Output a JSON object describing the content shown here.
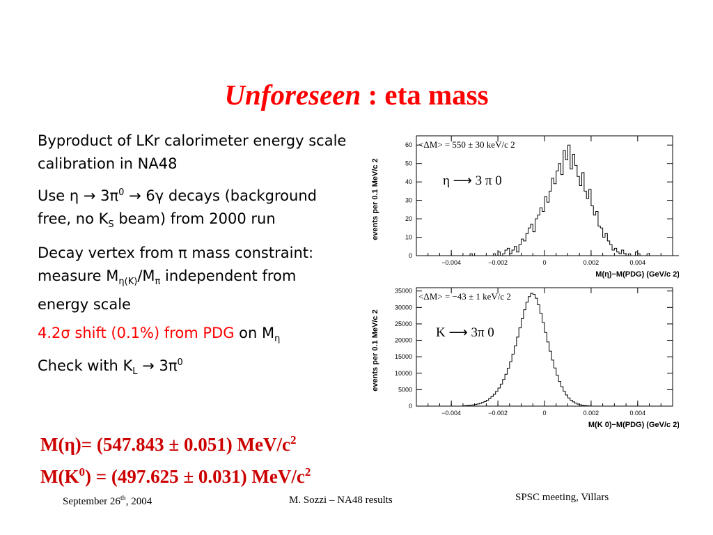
{
  "slide": {
    "title_italic": "Unforeseen",
    "title_rest": " : eta mass"
  },
  "bullets": {
    "b1": "Byproduct of LKr calorimeter energy scale calibration in NA48",
    "b2_pre": "Use η → 3π",
    "b2_sup": "0",
    "b2_mid": " → 6γ decays (background free, no K",
    "b2_sub": "S",
    "b2_post": " beam) from 2000 run",
    "b3_pre": "Decay vertex from π mass constraint: measure M",
    "b3_sub1": "η(K)",
    "b3_mid": "/M",
    "b3_sub2": "π",
    "b3_post": " independent from energy scale",
    "b4_red": "4.2σ shift (0.1%) from PDG",
    "b4_black": " on M",
    "b4_sub": "η",
    "b5_pre": "Check with K",
    "b5_sub": "L",
    "b5_mid": " → 3π",
    "b5_sup": "0"
  },
  "results": {
    "eta_pre": "M(η)= (547.843 ± 0.051) MeV/c",
    "eta_sup": "2",
    "k_pre": "M(K",
    "k_sup": "0",
    "k_mid": ") = (497.625 ± 0.031) MeV/c",
    "k_sup2": "2"
  },
  "footer": {
    "date_pre": "September 26",
    "date_sup": "th",
    "date_post": ", 2004",
    "center": "M. Sozzi – NA48 results",
    "right": "SPSC meeting, Villars"
  },
  "colors": {
    "title": "#ff0000",
    "results": "#cc0000",
    "highlight": "#ff0000"
  },
  "chart_data": [
    {
      "type": "histogram",
      "ylabel": "events per 0.1 MeV/c 2",
      "xlabel": "M(η)−M(PDG) (GeV/c 2)",
      "annotation": "<ΔM> = 550 ± 30 keV/c 2",
      "decay_label": "η ⟶ 3 π 0",
      "xlim": [
        -0.0055,
        0.0055
      ],
      "ylim": [
        0,
        65
      ],
      "x_ticks": [
        "−0.004",
        "−0.002",
        "0",
        "0.002",
        "0.004"
      ],
      "x_tick_values": [
        -0.004,
        -0.002,
        0,
        0.002,
        0.004
      ],
      "y_ticks": [
        "0",
        "10",
        "20",
        "30",
        "40",
        "50",
        "60"
      ],
      "y_tick_values": [
        0,
        10,
        20,
        30,
        40,
        50,
        60
      ],
      "bin_width": 0.0001,
      "bin_start": -0.005,
      "counts": [
        0,
        0,
        0,
        0,
        0,
        0,
        0,
        0,
        0,
        0,
        0,
        0,
        0,
        0,
        0,
        0,
        0,
        0,
        1,
        0,
        0,
        0,
        0,
        0,
        0,
        0,
        0,
        0,
        1,
        0,
        2,
        0,
        1,
        3,
        4,
        1,
        3,
        5,
        2,
        6,
        9,
        8,
        12,
        15,
        17,
        13,
        20,
        22,
        26,
        24,
        32,
        29,
        35,
        42,
        39,
        46,
        50,
        44,
        57,
        52,
        60,
        47,
        55,
        49,
        43,
        38,
        45,
        35,
        31,
        36,
        27,
        22,
        24,
        16,
        15,
        10,
        12,
        8,
        6,
        3,
        4,
        2,
        1,
        3,
        1,
        0,
        1,
        0,
        0,
        2,
        1,
        0,
        0,
        0,
        1,
        0,
        0,
        0,
        0,
        0,
        0,
        0,
        0,
        0,
        0,
        0,
        0,
        0,
        0,
        0
      ]
    },
    {
      "type": "histogram",
      "ylabel": "events per 0.1 MeV/c 2",
      "xlabel": "M(K 0)−M(PDG) (GeV/c 2)",
      "annotation": "<ΔM> = −43 ± 1 keV/c 2",
      "decay_label": "K ⟶ 3π 0",
      "xlim": [
        -0.0055,
        0.0055
      ],
      "ylim": [
        0,
        36000
      ],
      "x_ticks": [
        "−0.004",
        "−0.002",
        "0",
        "0.002",
        "0.004"
      ],
      "x_tick_values": [
        -0.004,
        -0.002,
        0,
        0.002,
        0.004
      ],
      "y_ticks": [
        "0",
        "5000",
        "10000",
        "15000",
        "20000",
        "25000",
        "30000",
        "35000"
      ],
      "y_tick_values": [
        0,
        5000,
        10000,
        15000,
        20000,
        25000,
        30000,
        35000
      ],
      "bin_width": 0.0001,
      "bin_start": -0.0035,
      "counts": [
        100,
        150,
        200,
        280,
        380,
        500,
        650,
        850,
        1100,
        1400,
        1800,
        2300,
        2900,
        3600,
        4500,
        5500,
        6700,
        8100,
        9700,
        11500,
        13500,
        15800,
        18300,
        21000,
        23800,
        26600,
        29300,
        31600,
        33300,
        34300,
        34000,
        32800,
        30800,
        28200,
        25400,
        22400,
        19500,
        16700,
        14000,
        11600,
        9400,
        7500,
        5900,
        4500,
        3400,
        2500,
        1800,
        1300,
        900,
        600,
        400,
        250,
        150,
        100,
        50
      ]
    }
  ]
}
